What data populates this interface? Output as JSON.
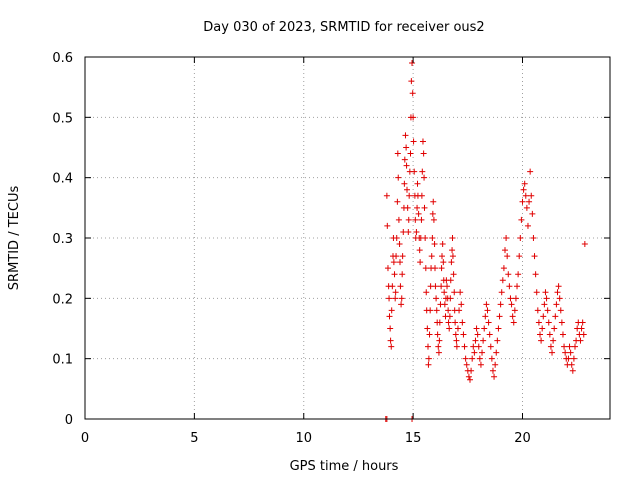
{
  "chart_data": {
    "type": "scatter",
    "title": "Day 030 of 2023, SRMTID for receiver ous2",
    "xlabel": "GPS time / hours",
    "ylabel": "SRMTID / TECUs",
    "xlim": [
      0,
      24
    ],
    "ylim": [
      0,
      0.6
    ],
    "xticks": [
      0,
      5,
      10,
      15,
      20
    ],
    "xtick_labels": [
      "0",
      "5",
      "10",
      "15",
      "20"
    ],
    "yticks": [
      0,
      0.1,
      0.2,
      0.3,
      0.4,
      0.5,
      0.6
    ],
    "ytick_labels": [
      "0",
      "0.1",
      "0.2",
      "0.3",
      "0.4",
      "0.5",
      "0.6"
    ],
    "grid": true,
    "marker": "+",
    "color": "#e00000",
    "series": [
      {
        "name": "SRMTID",
        "points": [
          [
            13.75,
            0.0
          ],
          [
            13.8,
            0.0
          ],
          [
            14.95,
            0.0
          ],
          [
            13.8,
            0.37
          ],
          [
            13.82,
            0.32
          ],
          [
            13.85,
            0.25
          ],
          [
            13.88,
            0.22
          ],
          [
            13.9,
            0.2
          ],
          [
            13.92,
            0.17
          ],
          [
            13.95,
            0.15
          ],
          [
            13.97,
            0.13
          ],
          [
            14.0,
            0.12
          ],
          [
            14.02,
            0.18
          ],
          [
            14.05,
            0.22
          ],
          [
            14.08,
            0.27
          ],
          [
            14.1,
            0.3
          ],
          [
            14.12,
            0.26
          ],
          [
            14.15,
            0.24
          ],
          [
            14.18,
            0.2
          ],
          [
            14.2,
            0.21
          ],
          [
            14.22,
            0.27
          ],
          [
            14.25,
            0.3
          ],
          [
            14.28,
            0.36
          ],
          [
            14.3,
            0.44
          ],
          [
            14.32,
            0.4
          ],
          [
            14.35,
            0.33
          ],
          [
            14.38,
            0.29
          ],
          [
            14.4,
            0.26
          ],
          [
            14.42,
            0.22
          ],
          [
            14.45,
            0.19
          ],
          [
            14.48,
            0.2
          ],
          [
            14.5,
            0.24
          ],
          [
            14.52,
            0.27
          ],
          [
            14.55,
            0.31
          ],
          [
            14.58,
            0.35
          ],
          [
            14.6,
            0.39
          ],
          [
            14.62,
            0.43
          ],
          [
            14.65,
            0.47
          ],
          [
            14.68,
            0.45
          ],
          [
            14.7,
            0.42
          ],
          [
            14.72,
            0.38
          ],
          [
            14.75,
            0.35
          ],
          [
            14.78,
            0.31
          ],
          [
            14.8,
            0.33
          ],
          [
            14.82,
            0.37
          ],
          [
            14.85,
            0.41
          ],
          [
            14.88,
            0.44
          ],
          [
            14.9,
            0.5
          ],
          [
            14.92,
            0.56
          ],
          [
            14.95,
            0.59
          ],
          [
            14.98,
            0.54
          ],
          [
            15.0,
            0.5
          ],
          [
            15.02,
            0.46
          ],
          [
            15.05,
            0.41
          ],
          [
            15.08,
            0.37
          ],
          [
            15.1,
            0.33
          ],
          [
            15.12,
            0.3
          ],
          [
            15.15,
            0.31
          ],
          [
            15.18,
            0.35
          ],
          [
            15.2,
            0.39
          ],
          [
            15.22,
            0.37
          ],
          [
            15.25,
            0.34
          ],
          [
            15.28,
            0.3
          ],
          [
            15.3,
            0.28
          ],
          [
            15.32,
            0.26
          ],
          [
            15.35,
            0.3
          ],
          [
            15.38,
            0.33
          ],
          [
            15.4,
            0.37
          ],
          [
            15.42,
            0.41
          ],
          [
            15.45,
            0.46
          ],
          [
            15.48,
            0.44
          ],
          [
            15.5,
            0.4
          ],
          [
            15.52,
            0.35
          ],
          [
            15.55,
            0.3
          ],
          [
            15.58,
            0.25
          ],
          [
            15.6,
            0.21
          ],
          [
            15.62,
            0.18
          ],
          [
            15.65,
            0.15
          ],
          [
            15.68,
            0.12
          ],
          [
            15.7,
            0.09
          ],
          [
            15.72,
            0.1
          ],
          [
            15.75,
            0.14
          ],
          [
            15.78,
            0.18
          ],
          [
            15.8,
            0.22
          ],
          [
            15.82,
            0.25
          ],
          [
            15.85,
            0.27
          ],
          [
            15.88,
            0.3
          ],
          [
            15.9,
            0.34
          ],
          [
            15.92,
            0.36
          ],
          [
            15.95,
            0.33
          ],
          [
            15.98,
            0.29
          ],
          [
            16.0,
            0.25
          ],
          [
            16.02,
            0.22
          ],
          [
            16.05,
            0.2
          ],
          [
            16.08,
            0.18
          ],
          [
            16.1,
            0.16
          ],
          [
            16.12,
            0.14
          ],
          [
            16.15,
            0.12
          ],
          [
            16.18,
            0.11
          ],
          [
            16.2,
            0.13
          ],
          [
            16.22,
            0.16
          ],
          [
            16.25,
            0.19
          ],
          [
            16.28,
            0.22
          ],
          [
            16.3,
            0.25
          ],
          [
            16.32,
            0.27
          ],
          [
            16.35,
            0.29
          ],
          [
            16.38,
            0.26
          ],
          [
            16.4,
            0.23
          ],
          [
            16.42,
            0.21
          ],
          [
            16.45,
            0.19
          ],
          [
            16.48,
            0.17
          ],
          [
            16.5,
            0.2
          ],
          [
            16.52,
            0.23
          ],
          [
            16.55,
            0.22
          ],
          [
            16.58,
            0.2
          ],
          [
            16.6,
            0.18
          ],
          [
            16.62,
            0.16
          ],
          [
            16.65,
            0.15
          ],
          [
            16.68,
            0.17
          ],
          [
            16.7,
            0.2
          ],
          [
            16.72,
            0.23
          ],
          [
            16.75,
            0.26
          ],
          [
            16.78,
            0.28
          ],
          [
            16.8,
            0.3
          ],
          [
            16.82,
            0.27
          ],
          [
            16.85,
            0.24
          ],
          [
            16.88,
            0.21
          ],
          [
            16.9,
            0.18
          ],
          [
            16.92,
            0.16
          ],
          [
            16.95,
            0.14
          ],
          [
            16.98,
            0.13
          ],
          [
            17.0,
            0.12
          ],
          [
            17.05,
            0.15
          ],
          [
            17.1,
            0.18
          ],
          [
            17.15,
            0.21
          ],
          [
            17.2,
            0.19
          ],
          [
            17.25,
            0.16
          ],
          [
            17.3,
            0.14
          ],
          [
            17.35,
            0.12
          ],
          [
            17.4,
            0.1
          ],
          [
            17.45,
            0.09
          ],
          [
            17.5,
            0.08
          ],
          [
            17.55,
            0.07
          ],
          [
            17.6,
            0.065
          ],
          [
            17.65,
            0.08
          ],
          [
            17.7,
            0.1
          ],
          [
            17.75,
            0.12
          ],
          [
            17.8,
            0.11
          ],
          [
            17.85,
            0.13
          ],
          [
            17.9,
            0.15
          ],
          [
            17.95,
            0.14
          ],
          [
            18.0,
            0.12
          ],
          [
            18.05,
            0.1
          ],
          [
            18.1,
            0.09
          ],
          [
            18.15,
            0.11
          ],
          [
            18.2,
            0.13
          ],
          [
            18.25,
            0.15
          ],
          [
            18.3,
            0.17
          ],
          [
            18.35,
            0.19
          ],
          [
            18.4,
            0.18
          ],
          [
            18.45,
            0.16
          ],
          [
            18.5,
            0.14
          ],
          [
            18.55,
            0.12
          ],
          [
            18.6,
            0.1
          ],
          [
            18.65,
            0.08
          ],
          [
            18.7,
            0.07
          ],
          [
            18.75,
            0.09
          ],
          [
            18.8,
            0.11
          ],
          [
            18.85,
            0.13
          ],
          [
            18.9,
            0.15
          ],
          [
            18.95,
            0.17
          ],
          [
            19.0,
            0.19
          ],
          [
            19.05,
            0.21
          ],
          [
            19.1,
            0.23
          ],
          [
            19.15,
            0.25
          ],
          [
            19.2,
            0.28
          ],
          [
            19.25,
            0.3
          ],
          [
            19.3,
            0.27
          ],
          [
            19.35,
            0.24
          ],
          [
            19.4,
            0.22
          ],
          [
            19.45,
            0.2
          ],
          [
            19.5,
            0.19
          ],
          [
            19.55,
            0.17
          ],
          [
            19.6,
            0.16
          ],
          [
            19.65,
            0.18
          ],
          [
            19.7,
            0.2
          ],
          [
            19.75,
            0.22
          ],
          [
            19.8,
            0.24
          ],
          [
            19.85,
            0.27
          ],
          [
            19.9,
            0.3
          ],
          [
            19.95,
            0.33
          ],
          [
            20.0,
            0.36
          ],
          [
            20.05,
            0.38
          ],
          [
            20.1,
            0.39
          ],
          [
            20.15,
            0.37
          ],
          [
            20.2,
            0.35
          ],
          [
            20.25,
            0.32
          ],
          [
            20.3,
            0.36
          ],
          [
            20.35,
            0.41
          ],
          [
            20.4,
            0.37
          ],
          [
            20.45,
            0.34
          ],
          [
            20.5,
            0.3
          ],
          [
            20.55,
            0.27
          ],
          [
            20.6,
            0.24
          ],
          [
            20.65,
            0.21
          ],
          [
            20.7,
            0.18
          ],
          [
            20.75,
            0.16
          ],
          [
            20.8,
            0.14
          ],
          [
            20.85,
            0.13
          ],
          [
            20.9,
            0.15
          ],
          [
            20.95,
            0.17
          ],
          [
            21.0,
            0.19
          ],
          [
            21.05,
            0.21
          ],
          [
            21.1,
            0.2
          ],
          [
            21.15,
            0.18
          ],
          [
            21.2,
            0.16
          ],
          [
            21.25,
            0.14
          ],
          [
            21.3,
            0.12
          ],
          [
            21.35,
            0.11
          ],
          [
            21.4,
            0.13
          ],
          [
            21.45,
            0.15
          ],
          [
            21.5,
            0.17
          ],
          [
            21.55,
            0.19
          ],
          [
            21.6,
            0.21
          ],
          [
            21.65,
            0.22
          ],
          [
            21.7,
            0.2
          ],
          [
            21.75,
            0.18
          ],
          [
            21.8,
            0.16
          ],
          [
            21.85,
            0.14
          ],
          [
            21.9,
            0.12
          ],
          [
            21.95,
            0.11
          ],
          [
            22.0,
            0.1
          ],
          [
            22.05,
            0.09
          ],
          [
            22.1,
            0.1
          ],
          [
            22.15,
            0.12
          ],
          [
            22.2,
            0.11
          ],
          [
            22.25,
            0.09
          ],
          [
            22.3,
            0.08
          ],
          [
            22.35,
            0.1
          ],
          [
            22.4,
            0.12
          ],
          [
            22.45,
            0.13
          ],
          [
            22.5,
            0.15
          ],
          [
            22.55,
            0.16
          ],
          [
            22.6,
            0.14
          ],
          [
            22.65,
            0.13
          ],
          [
            22.7,
            0.15
          ],
          [
            22.75,
            0.16
          ],
          [
            22.8,
            0.14
          ],
          [
            22.85,
            0.29
          ]
        ]
      }
    ]
  }
}
